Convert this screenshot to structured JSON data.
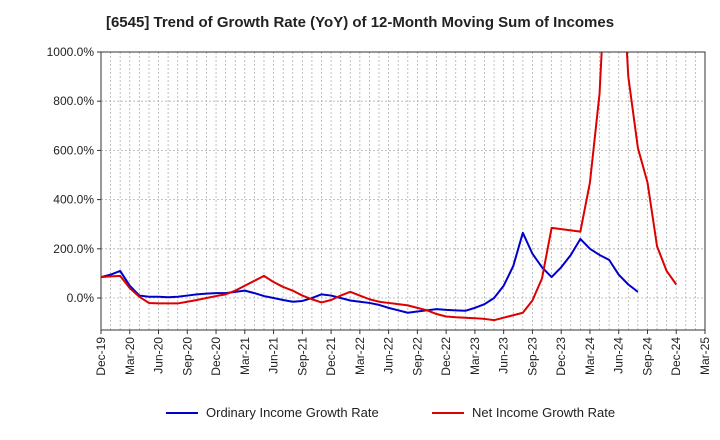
{
  "chart_data": {
    "type": "line",
    "title": "[6545]  Trend of Growth Rate (YoY) of 12-Month Moving Sum of Incomes",
    "xlabel": "",
    "ylabel": "",
    "ylim": [
      -130,
      1000
    ],
    "y_ticks": [
      0,
      200,
      400,
      600,
      800,
      1000
    ],
    "y_tick_labels": [
      "0.0%",
      "200.0%",
      "400.0%",
      "600.0%",
      "800.0%",
      "1000.0%"
    ],
    "x_tick_labels": [
      "Dec-19",
      "Mar-20",
      "Jun-20",
      "Sep-20",
      "Dec-20",
      "Mar-21",
      "Jun-21",
      "Sep-21",
      "Dec-21",
      "Mar-22",
      "Jun-22",
      "Sep-22",
      "Dec-22",
      "Mar-23",
      "Jun-23",
      "Sep-23",
      "Dec-23",
      "Mar-24",
      "Jun-24",
      "Sep-24",
      "Dec-24",
      "Mar-25"
    ],
    "months_per_tick": 3,
    "grid": true,
    "legend_position": "bottom",
    "series": [
      {
        "name": "Ordinary Income Growth Rate",
        "color": "#0000cc",
        "values": [
          85,
          95,
          110,
          50,
          10,
          5,
          5,
          3,
          5,
          10,
          15,
          18,
          20,
          20,
          25,
          30,
          20,
          8,
          0,
          -8,
          -15,
          -12,
          0,
          15,
          10,
          0,
          -10,
          -15,
          -20,
          -28,
          -40,
          -50,
          -60,
          -55,
          -50,
          -45,
          -48,
          -50,
          -52,
          -40,
          -25,
          0,
          50,
          130,
          265,
          180,
          125,
          85,
          125,
          175,
          240,
          200,
          175,
          155,
          95,
          55,
          25
        ]
      },
      {
        "name": "Net Income Growth Rate",
        "color": "#dd0000",
        "values": [
          85,
          88,
          90,
          40,
          5,
          -20,
          -22,
          -22,
          -22,
          -15,
          -8,
          0,
          8,
          15,
          30,
          50,
          70,
          90,
          65,
          45,
          30,
          10,
          -5,
          -18,
          -8,
          10,
          25,
          10,
          -5,
          -15,
          -20,
          -25,
          -30,
          -40,
          -50,
          -65,
          -75,
          -78,
          -80,
          -82,
          -85,
          -90,
          -80,
          -70,
          -60,
          -10,
          80,
          285,
          280,
          275,
          270,
          470,
          830,
          1600,
          1600,
          900,
          610,
          470,
          210,
          110,
          55
        ]
      }
    ]
  }
}
